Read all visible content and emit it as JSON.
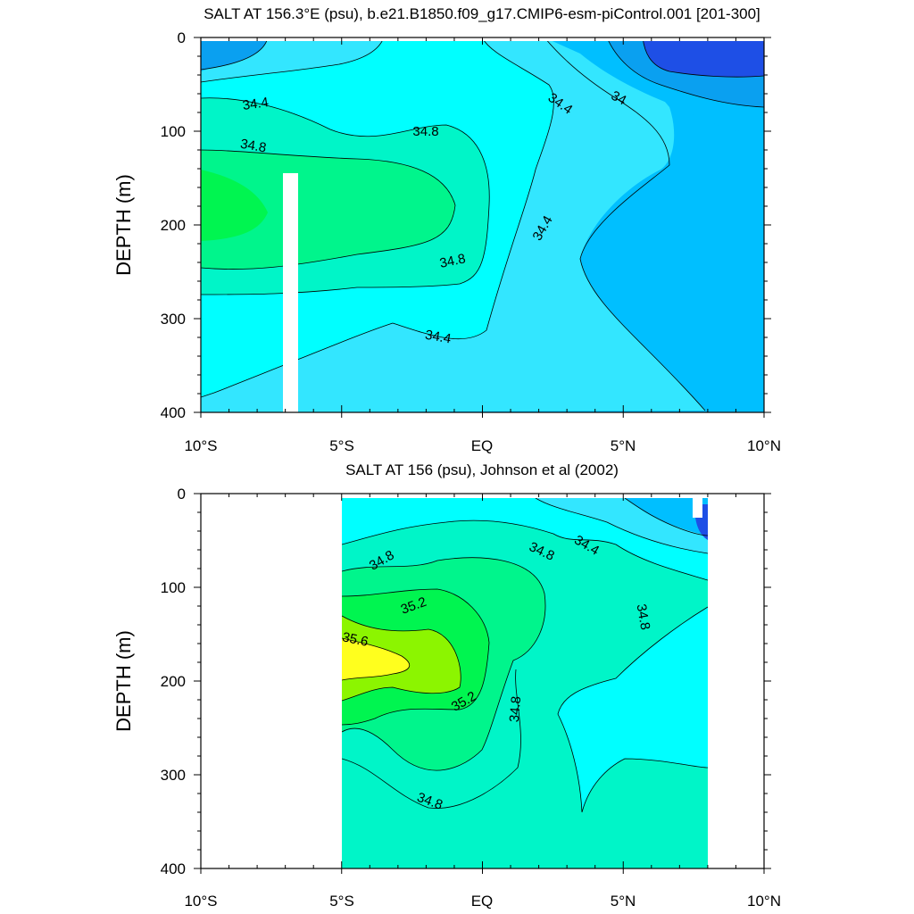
{
  "chart_data": [
    {
      "type": "contour",
      "title": "SALT AT 156.3°E (psu), b.e21.B1850.f09_g17.CMIP6-esm-piControl.001 [201-300]",
      "xlabel": "",
      "ylabel": "DEPTH (m)",
      "xlim": [
        -10,
        10
      ],
      "ylim": [
        400,
        0
      ],
      "x_ticks": [
        -10,
        -5,
        0,
        5,
        10
      ],
      "x_tick_labels": [
        "10°S",
        "5°S",
        "EQ",
        "5°N",
        "10°N"
      ],
      "y_ticks": [
        0,
        100,
        200,
        300,
        400
      ],
      "y_tick_labels": [
        "0",
        "100",
        "200",
        "300",
        "400"
      ],
      "contour_labels": [
        "34.4",
        "34.8",
        "34.8",
        "34.8",
        "34.4",
        "34.4",
        "34.4",
        "34"
      ],
      "levels": [
        {
          "value": 33.6,
          "color": "#1e4fe6"
        },
        {
          "value": 34.0,
          "color": "#0aa0f0"
        },
        {
          "value": 34.2,
          "color": "#00bfff"
        },
        {
          "value": 34.4,
          "color": "#33e6ff"
        },
        {
          "value": 34.6,
          "color": "#00ffff"
        },
        {
          "value": 34.8,
          "color": "#00f5c8"
        },
        {
          "value": 35.0,
          "color": "#00f58c"
        },
        {
          "value": 35.2,
          "color": "#00f550"
        }
      ]
    },
    {
      "type": "contour",
      "title": "SALT AT 156 (psu), Johnson et al (2002)",
      "xlabel": "",
      "ylabel": "DEPTH (m)",
      "xlim": [
        -10,
        10
      ],
      "ylim": [
        400,
        0
      ],
      "x_ticks": [
        -10,
        -5,
        0,
        5,
        10
      ],
      "x_tick_labels": [
        "10°S",
        "5°S",
        "EQ",
        "5°N",
        "10°N"
      ],
      "y_ticks": [
        0,
        100,
        200,
        300,
        400
      ],
      "y_tick_labels": [
        "0",
        "100",
        "200",
        "300",
        "400"
      ],
      "contour_labels": [
        "34.8",
        "35.2",
        "35.6",
        "35.2",
        "34.8",
        "34.8",
        "34.4",
        "34.8",
        "34.8"
      ],
      "data_extent_x": [
        -5,
        8
      ],
      "levels": [
        {
          "value": 34.4,
          "color": "#33e6ff"
        },
        {
          "value": 34.6,
          "color": "#00ffff"
        },
        {
          "value": 34.8,
          "color": "#00f5c8"
        },
        {
          "value": 35.0,
          "color": "#00f58c"
        },
        {
          "value": 35.2,
          "color": "#00f550"
        },
        {
          "value": 35.4,
          "color": "#8cf500"
        },
        {
          "value": 35.6,
          "color": "#ffff1e"
        }
      ]
    }
  ]
}
